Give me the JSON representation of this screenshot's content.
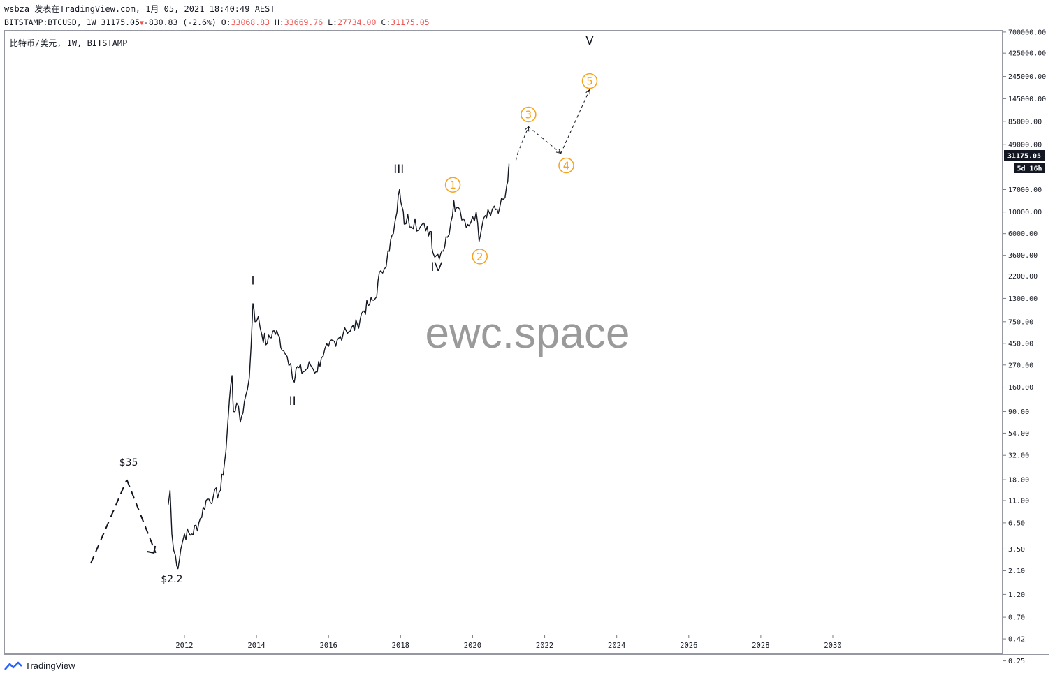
{
  "header": {
    "user": "wsbza",
    "published_text": "发表在TradingView.com,",
    "datetime": "1月 05, 2021 18:40:49 AEST",
    "symbol": "BITSTAMP:BTCUSD,",
    "interval": "1W",
    "last": "31175.05",
    "change": "-830.83",
    "change_pct": "(-2.6%)",
    "open_label": "O:",
    "open": "33068.83",
    "high_label": "H:",
    "high": "33669.76",
    "low_label": "L:",
    "low": "27734.00",
    "close_label": "C:",
    "close": "31175.05"
  },
  "pane_title": "比特币/美元, 1W, BITSTAMP",
  "watermark": "ewc.space",
  "footer": {
    "brand": "TradingView"
  },
  "colors": {
    "candle": "#131722",
    "orange": "#f7a21b",
    "price_bg": "#131722",
    "red": "#ef5350"
  },
  "price_badge": {
    "value": "31175.05",
    "countdown": "5d 16h"
  },
  "chart_data": {
    "type": "line",
    "y_scale": "log",
    "ylim": [
      0.2,
      800000
    ],
    "xlim": [
      2009.0,
      2033.0
    ],
    "y_ticks": [
      "700000.00",
      "425000.00",
      "245000.00",
      "145000.00",
      "85000.00",
      "49000.00",
      "17000.00",
      "10000.00",
      "6000.00",
      "3600.00",
      "2200.00",
      "1300.00",
      "750.00",
      "450.00",
      "270.00",
      "160.00",
      "90.00",
      "54.00",
      "32.00",
      "18.00",
      "11.00",
      "6.50",
      "3.50",
      "2.10",
      "1.20",
      "0.70",
      "0.42",
      "0.25"
    ],
    "x_ticks": [
      "2012",
      "2014",
      "2016",
      "2018",
      "2020",
      "2022",
      "2024",
      "2026",
      "2028",
      "2030"
    ],
    "price_series": [
      [
        2011.55,
        10
      ],
      [
        2011.6,
        14
      ],
      [
        2011.65,
        5
      ],
      [
        2011.75,
        3
      ],
      [
        2011.82,
        2.2
      ],
      [
        2011.9,
        3.5
      ],
      [
        2012.0,
        5
      ],
      [
        2012.2,
        5
      ],
      [
        2012.4,
        6.5
      ],
      [
        2012.6,
        11
      ],
      [
        2012.8,
        12
      ],
      [
        2013.0,
        14
      ],
      [
        2013.15,
        35
      ],
      [
        2013.25,
        120
      ],
      [
        2013.32,
        210
      ],
      [
        2013.36,
        90
      ],
      [
        2013.45,
        110
      ],
      [
        2013.55,
        70
      ],
      [
        2013.7,
        130
      ],
      [
        2013.8,
        200
      ],
      [
        2013.9,
        1150
      ],
      [
        2013.96,
        750
      ],
      [
        2014.05,
        850
      ],
      [
        2014.15,
        550
      ],
      [
        2014.3,
        450
      ],
      [
        2014.45,
        600
      ],
      [
        2014.6,
        550
      ],
      [
        2014.75,
        380
      ],
      [
        2014.85,
        330
      ],
      [
        2014.95,
        280
      ],
      [
        2015.05,
        180
      ],
      [
        2015.1,
        250
      ],
      [
        2015.3,
        230
      ],
      [
        2015.5,
        270
      ],
      [
        2015.65,
        230
      ],
      [
        2015.8,
        320
      ],
      [
        2015.9,
        400
      ],
      [
        2016.0,
        420
      ],
      [
        2016.2,
        420
      ],
      [
        2016.45,
        650
      ],
      [
        2016.6,
        600
      ],
      [
        2016.8,
        700
      ],
      [
        2016.95,
        950
      ],
      [
        2017.1,
        1100
      ],
      [
        2017.3,
        1300
      ],
      [
        2017.45,
        2500
      ],
      [
        2017.55,
        2600
      ],
      [
        2017.65,
        4000
      ],
      [
        2017.8,
        6000
      ],
      [
        2017.9,
        10000
      ],
      [
        2017.97,
        17000
      ],
      [
        2018.05,
        11000
      ],
      [
        2018.1,
        7500
      ],
      [
        2018.2,
        9500
      ],
      [
        2018.3,
        7000
      ],
      [
        2018.4,
        8500
      ],
      [
        2018.5,
        6500
      ],
      [
        2018.6,
        7500
      ],
      [
        2018.7,
        6400
      ],
      [
        2018.85,
        6300
      ],
      [
        2018.9,
        3800
      ],
      [
        2019.0,
        3600
      ],
      [
        2019.15,
        4000
      ],
      [
        2019.3,
        5500
      ],
      [
        2019.4,
        8000
      ],
      [
        2019.48,
        13000
      ],
      [
        2019.55,
        11000
      ],
      [
        2019.65,
        10500
      ],
      [
        2019.75,
        8500
      ],
      [
        2019.9,
        7200
      ],
      [
        2020.0,
        9000
      ],
      [
        2020.1,
        10000
      ],
      [
        2020.18,
        5000
      ],
      [
        2020.25,
        6800
      ],
      [
        2020.35,
        9200
      ],
      [
        2020.5,
        9200
      ],
      [
        2020.6,
        11500
      ],
      [
        2020.75,
        11000
      ],
      [
        2020.85,
        13500
      ],
      [
        2020.95,
        19000
      ],
      [
        2021.0,
        29000
      ],
      [
        2021.01,
        31175.05
      ]
    ],
    "projection": [
      [
        2021.25,
        40000
      ],
      [
        2021.55,
        75000
      ],
      [
        2022.45,
        40000
      ],
      [
        2023.25,
        180000
      ]
    ],
    "pre_history_path": [
      [
        2009.4,
        2.5
      ],
      [
        2010.4,
        18
      ],
      [
        2011.2,
        3.2
      ]
    ],
    "pre_history_arrow_tip": [
      2011.15,
      3.2
    ],
    "annotations": {
      "black_waves": [
        {
          "text": "I",
          "x": 2013.9,
          "y": 1800
        },
        {
          "text": "II",
          "x": 2015.0,
          "y": 105
        },
        {
          "text": "III",
          "x": 2017.95,
          "y": 25000
        },
        {
          "text": "IV",
          "x": 2019.0,
          "y": 2500
        },
        {
          "text": "V",
          "x": 2023.25,
          "y": 520000
        }
      ],
      "orange_waves": [
        {
          "text": "1",
          "x": 2019.45,
          "y": 19000
        },
        {
          "text": "2",
          "x": 2020.2,
          "y": 3500
        },
        {
          "text": "3",
          "x": 2021.55,
          "y": 100000
        },
        {
          "text": "4",
          "x": 2022.6,
          "y": 30000
        },
        {
          "text": "5",
          "x": 2023.25,
          "y": 220000
        }
      ],
      "price_labels": [
        {
          "text": "$35",
          "x": 2010.45,
          "y": 25
        },
        {
          "text": "$2.2",
          "x": 2011.65,
          "y": 1.6
        }
      ]
    }
  }
}
